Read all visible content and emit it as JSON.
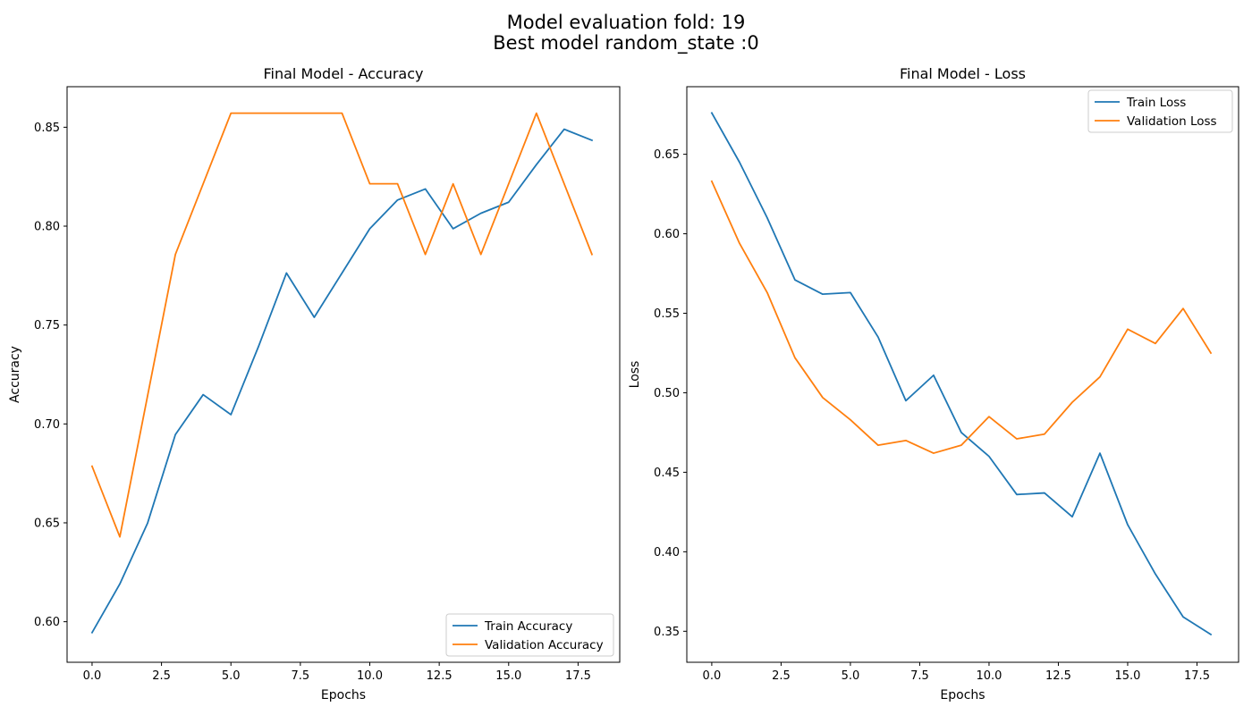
{
  "figure": {
    "title_line1": "Model evaluation fold: 19",
    "title_line2": "Best model random_state :0"
  },
  "colors": {
    "train": "#1f77b4",
    "validation": "#ff7f0e"
  },
  "chart_data": [
    {
      "type": "line",
      "title": "Final Model - Accuracy",
      "xlabel": "Epochs",
      "ylabel": "Accuracy",
      "xlim": [
        -0.9,
        19.0
      ],
      "ylim": [
        0.5795,
        0.8705
      ],
      "xticks": [
        0.0,
        2.5,
        5.0,
        7.5,
        10.0,
        12.5,
        15.0,
        17.5
      ],
      "xtick_labels": [
        "0.0",
        "2.5",
        "5.0",
        "7.5",
        "10.0",
        "12.5",
        "15.0",
        "17.5"
      ],
      "yticks": [
        0.6,
        0.65,
        0.7,
        0.75,
        0.8,
        0.85
      ],
      "ytick_labels": [
        "0.60",
        "0.65",
        "0.70",
        "0.75",
        "0.80",
        "0.85"
      ],
      "grid": false,
      "legend_position": "lower-right",
      "x": [
        0,
        1,
        2,
        3,
        4,
        5,
        6,
        7,
        8,
        9,
        10,
        11,
        12,
        13,
        14,
        15,
        16,
        17,
        18
      ],
      "series": [
        {
          "name": "Train Accuracy",
          "color": "#1f77b4",
          "values": [
            0.5945,
            0.6191,
            0.6499,
            0.6946,
            0.7148,
            0.7047,
            0.7394,
            0.7763,
            0.7539,
            0.7763,
            0.7987,
            0.8132,
            0.8188,
            0.7987,
            0.8065,
            0.8121,
            0.8311,
            0.849,
            0.8434
          ]
        },
        {
          "name": "Validation Accuracy",
          "color": "#ff7f0e",
          "values": [
            0.6786,
            0.6429,
            0.7143,
            0.7857,
            0.8214,
            0.8571,
            0.8571,
            0.8571,
            0.8571,
            0.8571,
            0.8214,
            0.8214,
            0.7857,
            0.8214,
            0.7857,
            0.8214,
            0.8571,
            0.8214,
            0.7857
          ]
        }
      ]
    },
    {
      "type": "line",
      "title": "Final Model - Loss",
      "xlabel": "Epochs",
      "ylabel": "Loss",
      "xlim": [
        -0.9,
        19.0
      ],
      "ylim": [
        0.3305,
        0.6925
      ],
      "xticks": [
        0.0,
        2.5,
        5.0,
        7.5,
        10.0,
        12.5,
        15.0,
        17.5
      ],
      "xtick_labels": [
        "0.0",
        "2.5",
        "5.0",
        "7.5",
        "10.0",
        "12.5",
        "15.0",
        "17.5"
      ],
      "yticks": [
        0.35,
        0.4,
        0.45,
        0.5,
        0.55,
        0.6,
        0.65
      ],
      "ytick_labels": [
        "0.35",
        "0.40",
        "0.45",
        "0.50",
        "0.55",
        "0.60",
        "0.65"
      ],
      "grid": false,
      "legend_position": "upper-right",
      "x": [
        0,
        1,
        2,
        3,
        4,
        5,
        6,
        7,
        8,
        9,
        10,
        11,
        12,
        13,
        14,
        15,
        16,
        17,
        18
      ],
      "series": [
        {
          "name": "Train Loss",
          "color": "#1f77b4",
          "values": [
            0.676,
            0.645,
            0.61,
            0.571,
            0.562,
            0.563,
            0.535,
            0.495,
            0.511,
            0.475,
            0.46,
            0.436,
            0.437,
            0.422,
            0.462,
            0.417,
            0.386,
            0.359,
            0.348
          ]
        },
        {
          "name": "Validation Loss",
          "color": "#ff7f0e",
          "values": [
            0.633,
            0.594,
            0.563,
            0.522,
            0.497,
            0.483,
            0.467,
            0.47,
            0.462,
            0.467,
            0.485,
            0.471,
            0.474,
            0.494,
            0.51,
            0.54,
            0.531,
            0.553,
            0.525
          ]
        }
      ]
    }
  ]
}
